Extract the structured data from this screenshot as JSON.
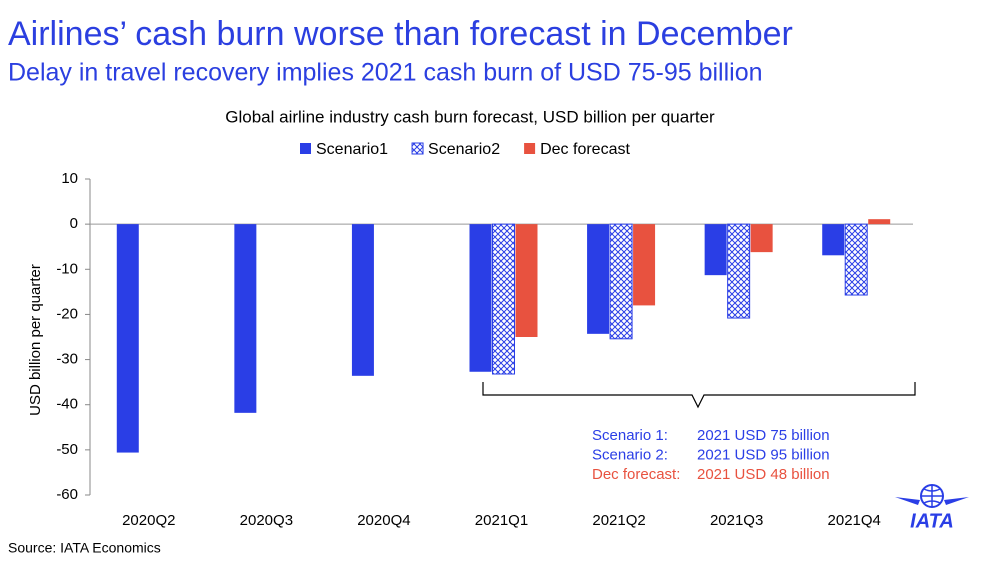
{
  "chart_data": {
    "type": "bar",
    "title": "Airlines’ cash burn worse than forecast in December",
    "subtitle": "Delay in travel recovery implies 2021 cash burn of USD 75-95 billion",
    "chart_title": "Global airline industry cash burn forecast, USD billion per quarter",
    "y_label": "USD billion per quarter",
    "source": "Source: IATA Economics",
    "logo": "IATA",
    "categories": [
      "2020Q2",
      "2020Q3",
      "2020Q4",
      "2021Q1",
      "2021Q2",
      "2021Q3",
      "2021Q4"
    ],
    "series": [
      {
        "name": "Scenario1",
        "color": "#2a3ee6",
        "values": [
          -50.6,
          -41.8,
          -33.6,
          -32.7,
          -24.3,
          -11.3,
          -6.9
        ]
      },
      {
        "name": "Scenario2",
        "color": "#2a3ee6",
        "hatch": true,
        "values": [
          null,
          null,
          null,
          -33.2,
          -25.4,
          -20.8,
          -15.7
        ]
      },
      {
        "name": "Dec forecast",
        "color": "#e8523f",
        "values": [
          null,
          null,
          null,
          -25.0,
          -18.0,
          -6.2,
          1.1
        ]
      }
    ],
    "ylim": [
      -60,
      10
    ],
    "yticks": [
      -60,
      -50,
      -40,
      -30,
      -20,
      -10,
      0,
      10
    ],
    "annotations": [
      {
        "label": "Scenario 1:",
        "text": "2021 USD 75 billion",
        "color": "#2a3ee6"
      },
      {
        "label": "Scenario 2:",
        "text": "2021 USD 95 billion",
        "color": "#2a3ee6"
      },
      {
        "label": "Dec forecast:",
        "text": "2021 USD 48 billion",
        "color": "#e8523f"
      }
    ]
  }
}
